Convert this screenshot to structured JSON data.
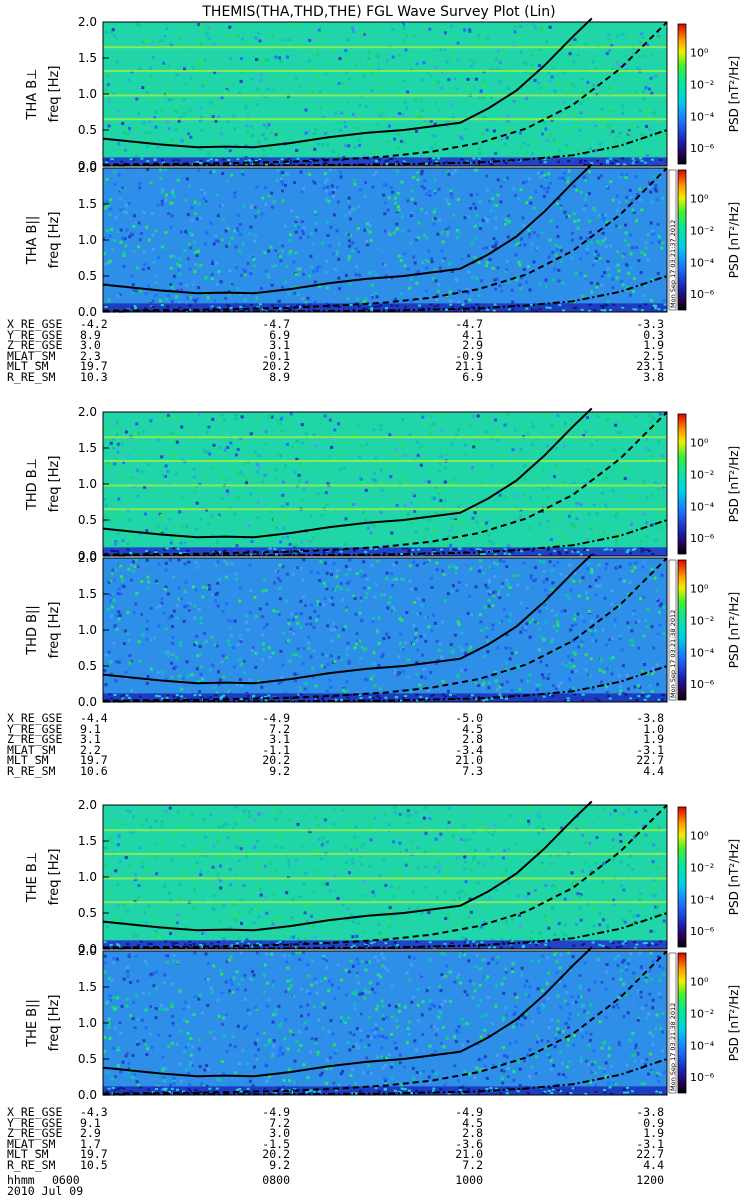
{
  "title": "THEMIS(THA,THD,THE) FGL Wave Survey Plot (Lin)",
  "colorbar": {
    "label": "PSD [nT²/Hz]",
    "ticks": [
      "10⁰",
      "10⁻²",
      "10⁻⁴",
      "10⁻⁶"
    ],
    "tick_exponents": [
      0,
      -2,
      -4,
      -6
    ]
  },
  "stamps": [
    "Mon Sep 17 03:21:37 2012",
    "Mon Sep 17 03:21:38 2012",
    "Mon Sep 17 03:21:38 2012"
  ],
  "chart_data": {
    "type": "heatmap",
    "x_axis": {
      "label": "hhmm",
      "date": "2010 Jul 09",
      "ticks": [
        "0600",
        "0800",
        "1000",
        "1200"
      ],
      "range": [
        "0600",
        "1200"
      ]
    },
    "y_axis": {
      "label": "freq [Hz]",
      "range": [
        0.0,
        2.0
      ],
      "ticks": [
        "0.0",
        "0.5",
        "1.0",
        "1.5",
        "2.0"
      ]
    },
    "panels": [
      {
        "label": "THA B⊥",
        "component": "perp"
      },
      {
        "label": "THA B||",
        "component": "par"
      },
      {
        "label": "THD B⊥",
        "component": "perp"
      },
      {
        "label": "THD B||",
        "component": "par"
      },
      {
        "label": "THE B⊥",
        "component": "perp"
      },
      {
        "label": "THE B||",
        "component": "par"
      }
    ],
    "overlay_curves": [
      {
        "style": "solid",
        "x_hours": [
          6.0,
          6.3,
          6.6,
          7.0,
          7.3,
          7.6,
          8.0,
          8.4,
          8.8,
          9.2,
          9.5,
          9.8,
          10.1,
          10.4,
          10.7,
          11.0,
          11.2
        ],
        "y": [
          0.38,
          0.34,
          0.3,
          0.26,
          0.27,
          0.26,
          0.32,
          0.4,
          0.46,
          0.5,
          0.55,
          0.6,
          0.8,
          1.05,
          1.4,
          1.8,
          2.05
        ]
      },
      {
        "style": "dashed",
        "x_hours": [
          6.0,
          7.0,
          8.0,
          8.5,
          9.0,
          9.5,
          10.0,
          10.5,
          11.0,
          11.5,
          12.0
        ],
        "y": [
          0.02,
          0.03,
          0.06,
          0.09,
          0.13,
          0.2,
          0.32,
          0.52,
          0.85,
          1.35,
          2.0
        ]
      },
      {
        "style": "dash-dot",
        "x_hours": [
          6.0,
          8.0,
          9.0,
          10.0,
          10.5,
          11.0,
          11.5,
          12.0
        ],
        "y": [
          0.005,
          0.01,
          0.02,
          0.05,
          0.09,
          0.15,
          0.28,
          0.5
        ]
      }
    ],
    "ephemeris": [
      {
        "rows": [
          {
            "label": "X_RE_GSE",
            "values": [
              "-4.2",
              "-4.7",
              "-4.7",
              "-3.3"
            ]
          },
          {
            "label": "Y_RE_GSE",
            "values": [
              "8.9",
              "6.9",
              "4.1",
              "0.3"
            ]
          },
          {
            "label": "Z_RE_GSE",
            "values": [
              "3.0",
              "3.1",
              "2.9",
              "1.9"
            ]
          },
          {
            "label": "MLAT_SM",
            "values": [
              "2.3",
              "-0.1",
              "-0.9",
              "2.5"
            ]
          },
          {
            "label": "MLT_SM",
            "values": [
              "19.7",
              "20.2",
              "21.1",
              "23.1"
            ]
          },
          {
            "label": "R_RE_SM",
            "values": [
              "10.3",
              "8.9",
              "6.9",
              "3.8"
            ]
          }
        ]
      },
      {
        "rows": [
          {
            "label": "X_RE_GSE",
            "values": [
              "-4.4",
              "-4.9",
              "-5.0",
              "-3.8"
            ]
          },
          {
            "label": "Y_RE_GSE",
            "values": [
              "9.1",
              "7.2",
              "4.5",
              "1.0"
            ]
          },
          {
            "label": "Z_RE_GSE",
            "values": [
              "3.1",
              "3.1",
              "2.8",
              "1.9"
            ]
          },
          {
            "label": "MLAT_SM",
            "values": [
              "2.2",
              "-1.1",
              "-3.4",
              "-3.1"
            ]
          },
          {
            "label": "MLT_SM",
            "values": [
              "19.7",
              "20.2",
              "21.0",
              "22.7"
            ]
          },
          {
            "label": "R_RE_SM",
            "values": [
              "10.6",
              "9.2",
              "7.3",
              "4.4"
            ]
          }
        ]
      },
      {
        "rows": [
          {
            "label": "X_RE_GSE",
            "values": [
              "-4.3",
              "-4.9",
              "-4.9",
              "-3.8"
            ]
          },
          {
            "label": "Y_RE_GSE",
            "values": [
              "9.1",
              "7.2",
              "4.5",
              "0.9"
            ]
          },
          {
            "label": "Z_RE_GSE",
            "values": [
              "2.9",
              "3.0",
              "2.8",
              "1.9"
            ]
          },
          {
            "label": "MLAT_SM",
            "values": [
              "1.7",
              "-1.5",
              "-3.6",
              "-3.1"
            ]
          },
          {
            "label": "MLT_SM",
            "values": [
              "19.7",
              "20.2",
              "21.0",
              "22.7"
            ]
          },
          {
            "label": "R_RE_SM",
            "values": [
              "10.5",
              "9.2",
              "7.2",
              "4.4"
            ]
          }
        ]
      }
    ]
  }
}
